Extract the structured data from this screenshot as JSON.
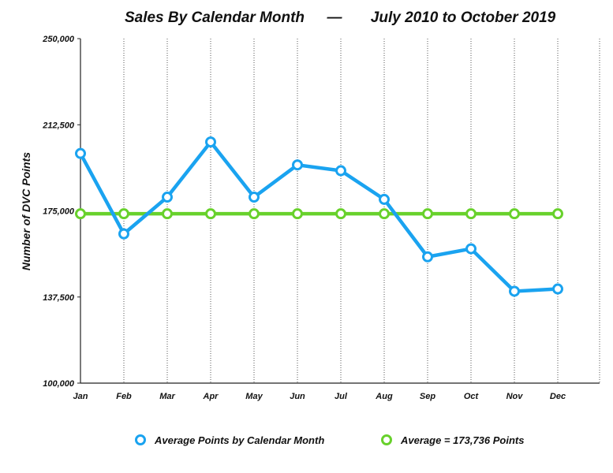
{
  "chart_data": {
    "type": "line",
    "title": "Sales By Calendar Month",
    "title_dash": "—",
    "subtitle": "July 2010 to October 2019",
    "xlabel": "",
    "ylabel": "Number of DVC Points",
    "categories": [
      "Jan",
      "Feb",
      "Mar",
      "Apr",
      "May",
      "Jun",
      "Jul",
      "Aug",
      "Sep",
      "Oct",
      "Nov",
      "Dec"
    ],
    "ylim": [
      100000,
      250000
    ],
    "yticks": [
      100000,
      137500,
      175000,
      212500,
      250000
    ],
    "ytick_labels": [
      "100,000",
      "137,500",
      "175,000",
      "212,500",
      "250,000"
    ],
    "grid": "vertical dotted",
    "legend_position": "bottom",
    "series": [
      {
        "name": "Average Points by Calendar Month",
        "color": "#1aa3f0",
        "values": [
          200000,
          165000,
          181000,
          205000,
          181000,
          195000,
          192500,
          180000,
          155000,
          158500,
          140000,
          141000
        ]
      },
      {
        "name": "Average = 173,736 Points",
        "color": "#68d12c",
        "values": [
          173736,
          173736,
          173736,
          173736,
          173736,
          173736,
          173736,
          173736,
          173736,
          173736,
          173736,
          173736
        ]
      }
    ]
  }
}
